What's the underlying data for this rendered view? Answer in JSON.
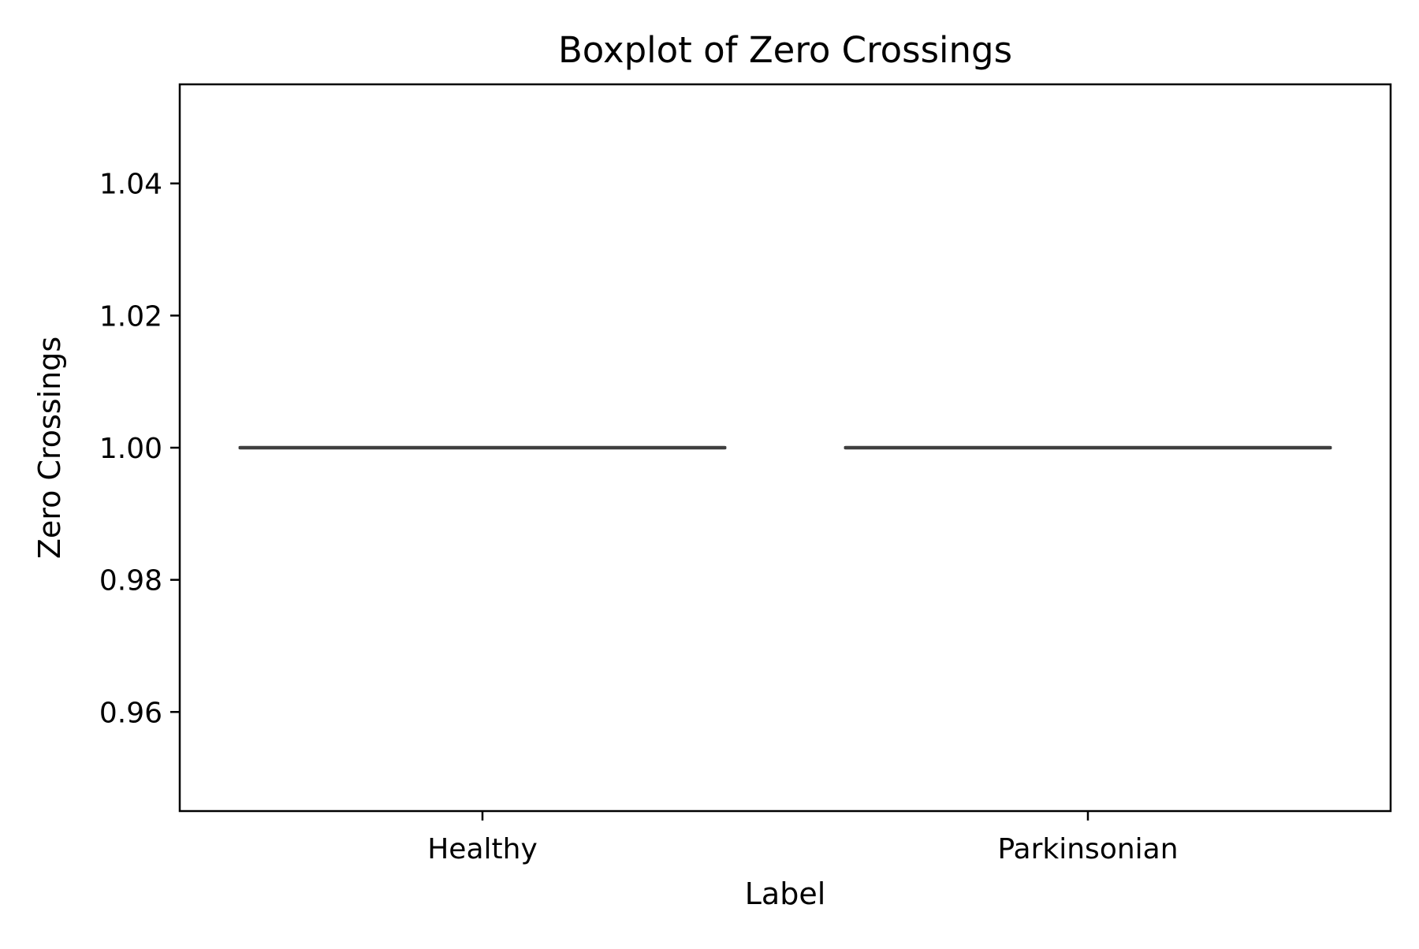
{
  "chart_data": {
    "type": "box",
    "title": "Boxplot of Zero Crossings",
    "xlabel": "Label",
    "ylabel": "Zero Crossings",
    "categories": [
      "Healthy",
      "Parkinsonian"
    ],
    "boxes": [
      {
        "category": "Healthy",
        "min": 1.0,
        "q1": 1.0,
        "median": 1.0,
        "q3": 1.0,
        "max": 1.0
      },
      {
        "category": "Parkinsonian",
        "min": 1.0,
        "q1": 1.0,
        "median": 1.0,
        "q3": 1.0,
        "max": 1.0
      }
    ],
    "ylim": [
      0.945,
      1.055
    ],
    "yticks": [
      0.96,
      0.98,
      1.0,
      1.02,
      1.04
    ],
    "ytick_labels": [
      "0.96",
      "0.98",
      "1.00",
      "1.02",
      "1.04"
    ],
    "grid": false,
    "legend": "none",
    "box_color": "#3f3f3f"
  }
}
